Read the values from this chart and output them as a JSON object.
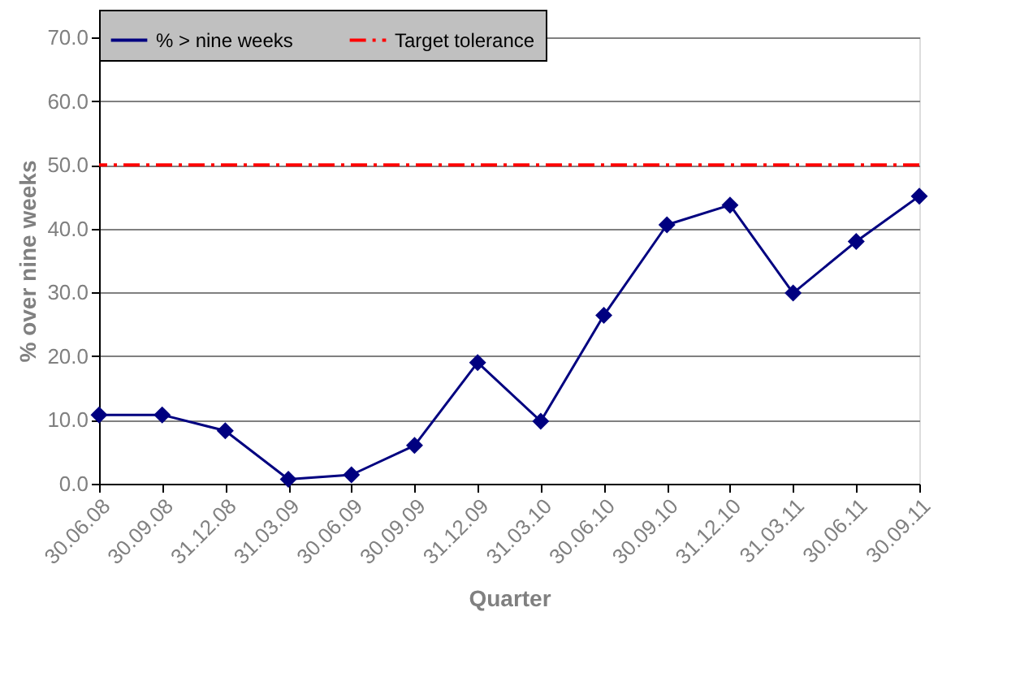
{
  "chart_data": {
    "type": "line",
    "xlabel": "Quarter",
    "ylabel": "% over nine weeks",
    "categories": [
      "30.06.08",
      "30.09.08",
      "31.12.08",
      "31.03.09",
      "30.06.09",
      "30.09.09",
      "31.12.09",
      "31.03.10",
      "30.06.10",
      "30.09.10",
      "31.12.10",
      "31.03.11",
      "30.06.11",
      "30.09.11"
    ],
    "series": [
      {
        "name": "% > nine weeks",
        "color": "#000080",
        "values": [
          10.8,
          10.8,
          8.3,
          0.7,
          1.4,
          6.0,
          19.0,
          9.8,
          26.4,
          40.6,
          43.7,
          29.9,
          38.0,
          45.1
        ]
      }
    ],
    "ref_lines": [
      {
        "axis": "y",
        "value": 50,
        "label": "Target tolerance",
        "color": "#ff0000",
        "line_style": "dashdot"
      }
    ],
    "ylim": [
      0,
      70
    ],
    "yticks": [
      {
        "value": 0,
        "label": "0.0"
      },
      {
        "value": 10,
        "label": "10.0"
      },
      {
        "value": 20,
        "label": "20.0"
      },
      {
        "value": 30,
        "label": "30.0"
      },
      {
        "value": 40,
        "label": "40.0"
      },
      {
        "value": 50,
        "label": "50.0"
      },
      {
        "value": 60,
        "label": "60.0"
      },
      {
        "value": 70,
        "label": "70.0"
      }
    ],
    "grid": "y",
    "legend": "top",
    "marker": "diamond",
    "line_style": "solid"
  }
}
